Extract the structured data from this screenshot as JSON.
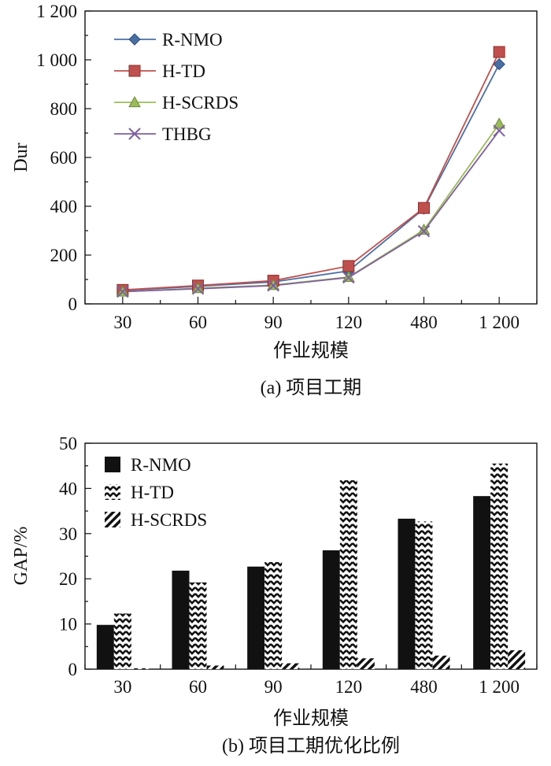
{
  "chart_data": [
    {
      "type": "line",
      "caption": "(a) 项目工期",
      "xlabel": "作业规模",
      "ylabel": "Dur",
      "categories": [
        "30",
        "60",
        "90",
        "120",
        "480",
        "1 200"
      ],
      "ylim": [
        0,
        1200
      ],
      "yticks": [
        0,
        200,
        400,
        600,
        800,
        1000,
        1200
      ],
      "ytick_labels": [
        "0",
        "200",
        "400",
        "600",
        "800",
        "1 000",
        "1 200"
      ],
      "legend_position": "top-left",
      "series": [
        {
          "name": "R-NMO",
          "marker": "diamond",
          "color": "#4a6fa5",
          "values": [
            55,
            72,
            90,
            135,
            390,
            982
          ]
        },
        {
          "name": "H-TD",
          "marker": "square",
          "color": "#c0504d",
          "values": [
            57,
            75,
            95,
            155,
            393,
            1032
          ]
        },
        {
          "name": "H-SCRDS",
          "marker": "triangle",
          "color": "#9bbb59",
          "values": [
            50,
            64,
            77,
            110,
            303,
            738
          ]
        },
        {
          "name": "THBG",
          "marker": "x",
          "color": "#7f5fa0",
          "values": [
            50,
            62,
            75,
            108,
            298,
            710
          ]
        }
      ]
    },
    {
      "type": "bar",
      "caption": "(b) 项目工期优化比例",
      "xlabel": "作业规模",
      "ylabel": "GAP/%",
      "categories": [
        "30",
        "60",
        "90",
        "120",
        "480",
        "1 200"
      ],
      "ylim": [
        0,
        50
      ],
      "yticks": [
        0,
        10,
        20,
        30,
        40,
        50
      ],
      "ytick_labels": [
        "0",
        "10",
        "20",
        "30",
        "40",
        "50"
      ],
      "legend_position": "top-left",
      "series": [
        {
          "name": "R-NMO",
          "pattern": "solid",
          "values": [
            9.8,
            21.8,
            22.7,
            26.3,
            33.3,
            38.3
          ]
        },
        {
          "name": "H-TD",
          "pattern": "zigzag",
          "values": [
            12.3,
            19.2,
            23.7,
            41.8,
            32.7,
            45.5
          ]
        },
        {
          "name": "H-SCRDS",
          "pattern": "diagonal",
          "values": [
            0.2,
            0.8,
            1.3,
            2.4,
            3.0,
            4.2
          ]
        }
      ]
    }
  ]
}
